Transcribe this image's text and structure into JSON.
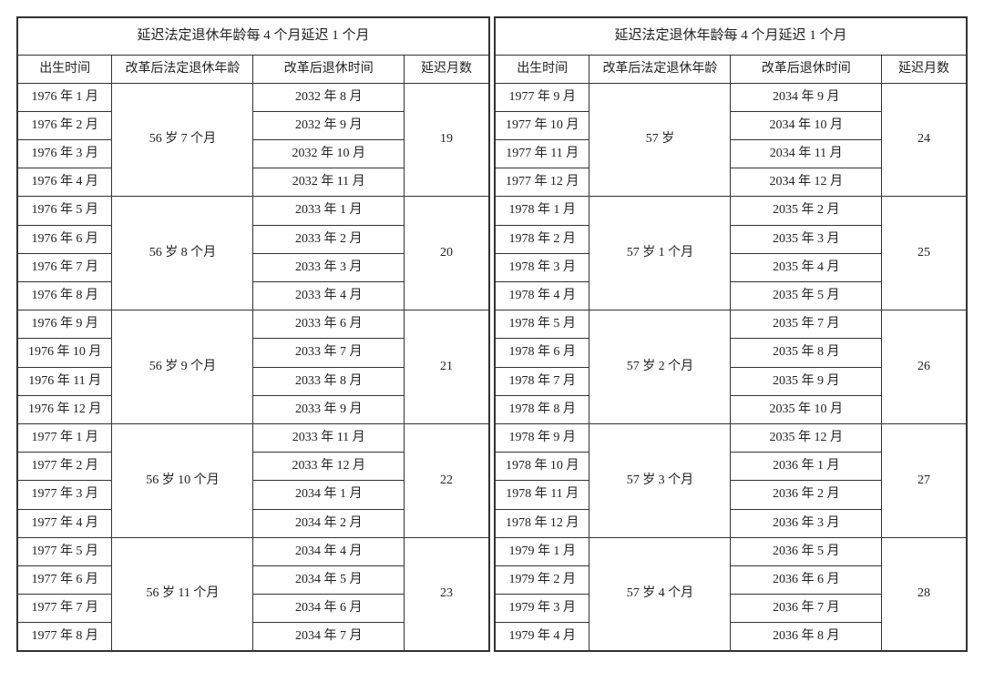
{
  "title": "延迟法定退休年龄每 4 个月延迟 1 个月",
  "headers": {
    "birth": "出生时间",
    "age": "改革后法定退休年龄",
    "retire": "改革后退休时间",
    "delay": "延迟月数"
  },
  "left": {
    "groups": [
      {
        "age": "56 岁 7 个月",
        "delay": "19",
        "rows": [
          {
            "birth": "1976 年 1 月",
            "retire": "2032 年 8 月"
          },
          {
            "birth": "1976 年 2 月",
            "retire": "2032 年 9 月"
          },
          {
            "birth": "1976 年 3 月",
            "retire": "2032 年 10 月"
          },
          {
            "birth": "1976 年 4 月",
            "retire": "2032 年 11 月"
          }
        ]
      },
      {
        "age": "56 岁 8 个月",
        "delay": "20",
        "rows": [
          {
            "birth": "1976 年 5 月",
            "retire": "2033 年 1 月"
          },
          {
            "birth": "1976 年 6 月",
            "retire": "2033 年 2 月"
          },
          {
            "birth": "1976 年 7 月",
            "retire": "2033 年 3 月"
          },
          {
            "birth": "1976 年 8 月",
            "retire": "2033 年 4 月"
          }
        ]
      },
      {
        "age": "56 岁 9 个月",
        "delay": "21",
        "rows": [
          {
            "birth": "1976 年 9 月",
            "retire": "2033 年 6 月"
          },
          {
            "birth": "1976 年 10 月",
            "retire": "2033 年 7 月"
          },
          {
            "birth": "1976 年 11 月",
            "retire": "2033 年 8 月"
          },
          {
            "birth": "1976 年 12 月",
            "retire": "2033 年 9 月"
          }
        ]
      },
      {
        "age": "56 岁 10 个月",
        "delay": "22",
        "rows": [
          {
            "birth": "1977 年 1 月",
            "retire": "2033 年 11 月"
          },
          {
            "birth": "1977 年 2 月",
            "retire": "2033 年 12 月"
          },
          {
            "birth": "1977 年 3 月",
            "retire": "2034 年 1 月"
          },
          {
            "birth": "1977 年 4 月",
            "retire": "2034 年 2 月"
          }
        ]
      },
      {
        "age": "56 岁 11 个月",
        "delay": "23",
        "rows": [
          {
            "birth": "1977 年 5 月",
            "retire": "2034 年 4 月"
          },
          {
            "birth": "1977 年 6 月",
            "retire": "2034 年 5 月"
          },
          {
            "birth": "1977 年 7 月",
            "retire": "2034 年 6 月"
          },
          {
            "birth": "1977 年 8 月",
            "retire": "2034 年 7 月"
          }
        ]
      }
    ]
  },
  "right": {
    "groups": [
      {
        "age": "57 岁",
        "delay": "24",
        "rows": [
          {
            "birth": "1977 年 9 月",
            "retire": "2034 年 9 月"
          },
          {
            "birth": "1977 年 10 月",
            "retire": "2034 年 10 月"
          },
          {
            "birth": "1977 年 11 月",
            "retire": "2034 年 11 月"
          },
          {
            "birth": "1977 年 12 月",
            "retire": "2034 年 12 月"
          }
        ]
      },
      {
        "age": "57 岁 1 个月",
        "delay": "25",
        "rows": [
          {
            "birth": "1978 年 1 月",
            "retire": "2035 年 2 月"
          },
          {
            "birth": "1978 年 2 月",
            "retire": "2035 年 3 月"
          },
          {
            "birth": "1978 年 3 月",
            "retire": "2035 年 4 月"
          },
          {
            "birth": "1978 年 4 月",
            "retire": "2035 年 5 月"
          }
        ]
      },
      {
        "age": "57 岁 2 个月",
        "delay": "26",
        "rows": [
          {
            "birth": "1978 年 5 月",
            "retire": "2035 年 7 月"
          },
          {
            "birth": "1978 年 6 月",
            "retire": "2035 年 8 月"
          },
          {
            "birth": "1978 年 7 月",
            "retire": "2035 年 9 月"
          },
          {
            "birth": "1978 年 8 月",
            "retire": "2035 年 10 月"
          }
        ]
      },
      {
        "age": "57 岁 3 个月",
        "delay": "27",
        "rows": [
          {
            "birth": "1978 年 9 月",
            "retire": "2035 年 12 月"
          },
          {
            "birth": "1978 年 10 月",
            "retire": "2036 年 1 月"
          },
          {
            "birth": "1978 年 11 月",
            "retire": "2036 年 2 月"
          },
          {
            "birth": "1978 年 12 月",
            "retire": "2036 年 3 月"
          }
        ]
      },
      {
        "age": "57 岁 4 个月",
        "delay": "28",
        "rows": [
          {
            "birth": "1979 年 1 月",
            "retire": "2036 年 5 月"
          },
          {
            "birth": "1979 年 2 月",
            "retire": "2036 年 6 月"
          },
          {
            "birth": "1979 年 3 月",
            "retire": "2036 年 7 月"
          },
          {
            "birth": "1979 年 4 月",
            "retire": "2036 年 8 月"
          }
        ]
      }
    ]
  }
}
